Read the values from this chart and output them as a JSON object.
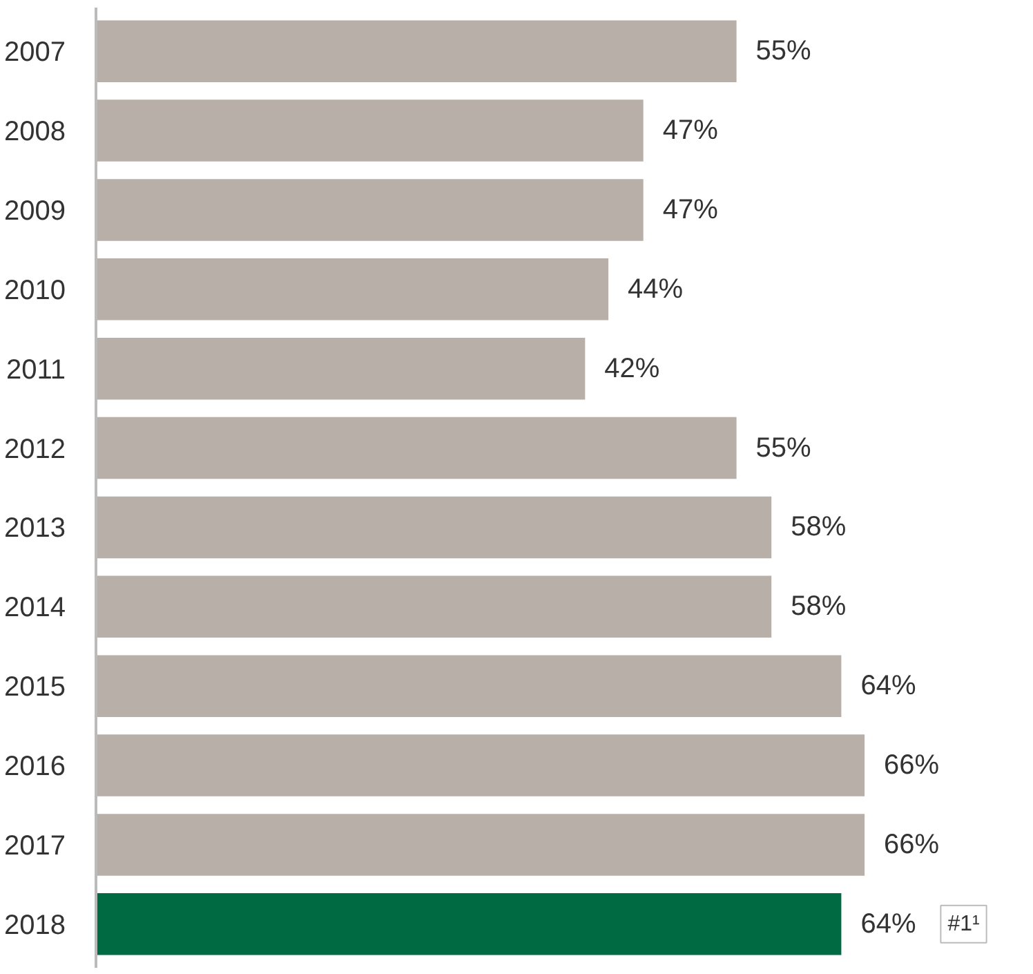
{
  "chart_data": {
    "type": "bar",
    "orientation": "horizontal",
    "categories": [
      "2007",
      "2008",
      "2009",
      "2010",
      "2011",
      "2012",
      "2013",
      "2014",
      "2015",
      "2016",
      "2017",
      "2018"
    ],
    "values": [
      55,
      47,
      47,
      44,
      42,
      55,
      58,
      58,
      64,
      66,
      66,
      64
    ],
    "colors": [
      "#b8b0a8",
      "#b8b0a8",
      "#b8b0a8",
      "#b8b0a8",
      "#b8b0a8",
      "#b8b0a8",
      "#b8b0a8",
      "#b8b0a8",
      "#b8b0a8",
      "#b8b0a8",
      "#b8b0a8",
      "#006a43"
    ],
    "value_labels": [
      "55%",
      "47%",
      "47%",
      "44%",
      "42%",
      "55%",
      "58%",
      "58%",
      "64%",
      "66%",
      "66%",
      "64%"
    ],
    "annotations": [
      "#1¹"
    ],
    "grid": false
  }
}
